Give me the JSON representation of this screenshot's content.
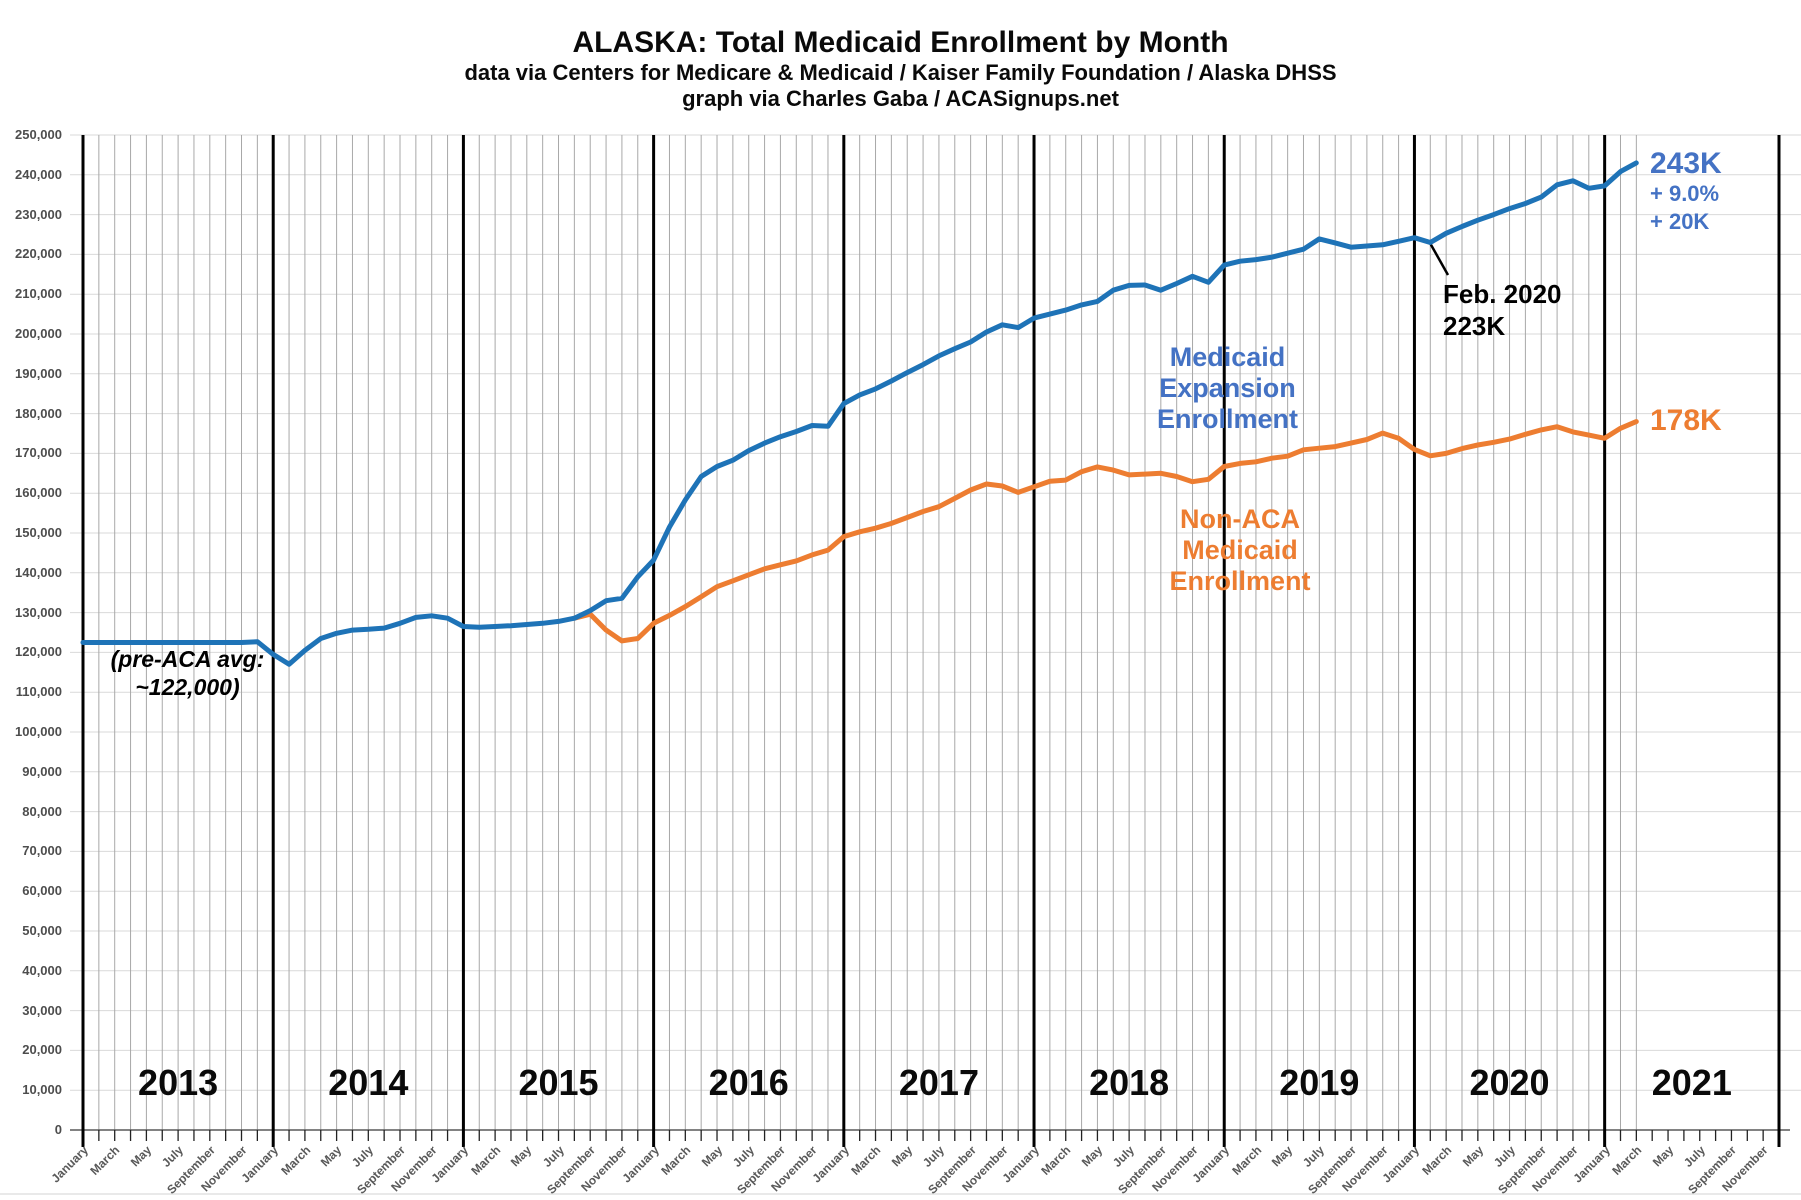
{
  "header": {
    "title": "ALASKA: Total Medicaid Enrollment by Month",
    "subtitle1": "data via Centers for Medicare & Medicaid / Kaiser Family Foundation / Alaska DHSS",
    "subtitle2": "graph via Charles Gaba / ACASignups.net"
  },
  "legend": {
    "expansion_line1": "Medicaid Expansion",
    "expansion_line2": "Enrollment",
    "nonaca_line1": "Non-ACA",
    "nonaca_line2": "Medicaid Enrollment"
  },
  "annotations": {
    "pre_aca_line1": "(pre-ACA avg:",
    "pre_aca_line2": "~122,000)",
    "feb2020_line1": "Feb. 2020",
    "feb2020_line2": "223K",
    "end_total_label": "243K",
    "end_total_pct": "+ 9.0%",
    "end_total_abs": "+ 20K",
    "end_nonaca_label": "178K"
  },
  "colors": {
    "total_line": "#1E73B7",
    "nonaca_line": "#ED7D31",
    "blue_text": "#4472C4",
    "orange_text": "#ED7D31",
    "gridline": "#D9D9D9",
    "month_gridline": "#A8A8A8",
    "year_line": "#000000",
    "axis_text": "#595959"
  },
  "chart_data": {
    "type": "line",
    "title": "ALASKA: Total Medicaid Enrollment by Month",
    "x_start": "2013-01",
    "x_end": "2021-12",
    "years": [
      2013,
      2014,
      2015,
      2016,
      2017,
      2018,
      2019,
      2020,
      2021
    ],
    "month_labels_shown": [
      "January",
      "March",
      "May",
      "July",
      "September",
      "November"
    ],
    "y_axis": {
      "min": 0,
      "max": 250000,
      "tick_step": 10000
    },
    "units": "enrollees (values in thousands)",
    "notes": "Black vertical rules at each January; data lines end March 2021",
    "series": [
      {
        "name": "Medicaid Expansion Enrollment",
        "color": "#1E73B7",
        "values_thousands": [
          122.5,
          122.5,
          122.5,
          122.5,
          122.5,
          122.5,
          122.5,
          122.5,
          122.5,
          122.5,
          122.5,
          122.7,
          119.5,
          117.0,
          120.5,
          123.5,
          124.8,
          125.6,
          125.8,
          126.1,
          127.3,
          128.8,
          129.2,
          128.6,
          126.5,
          126.3,
          126.5,
          126.7,
          127.0,
          127.3,
          127.8,
          128.6,
          130.5,
          133.0,
          133.6,
          139.0,
          143.2,
          151.5,
          158.3,
          164.2,
          166.7,
          168.3,
          170.7,
          172.6,
          174.2,
          175.5,
          177.0,
          176.8,
          182.5,
          184.7,
          186.2,
          188.2,
          190.3,
          192.3,
          194.5,
          196.3,
          198.0,
          200.5,
          202.3,
          201.6,
          204.0,
          205.0,
          206.0,
          207.3,
          208.2,
          211.0,
          212.2,
          212.3,
          211.0,
          212.7,
          214.5,
          213.0,
          217.3,
          218.3,
          218.7,
          219.3,
          220.3,
          221.3,
          223.9,
          222.9,
          221.8,
          222.1,
          222.4,
          223.3,
          224.2,
          223.0,
          225.3,
          227.0,
          228.6,
          230.0,
          231.5,
          232.8,
          234.4,
          237.5,
          238.5,
          236.6,
          237.2,
          240.8,
          243.0,
          null,
          null,
          null,
          null,
          null,
          null,
          null,
          null,
          null
        ]
      },
      {
        "name": "Non-ACA Medicaid Enrollment",
        "color": "#ED7D31",
        "values_thousands": [
          null,
          null,
          null,
          null,
          null,
          null,
          null,
          null,
          null,
          null,
          null,
          null,
          null,
          null,
          null,
          null,
          null,
          null,
          null,
          null,
          null,
          null,
          null,
          null,
          null,
          null,
          null,
          null,
          null,
          null,
          null,
          128.6,
          129.6,
          125.6,
          122.9,
          123.5,
          127.3,
          129.3,
          131.5,
          134.0,
          136.5,
          138.0,
          139.5,
          141.0,
          142.0,
          143.0,
          144.5,
          145.7,
          149.1,
          150.3,
          151.2,
          152.4,
          153.9,
          155.4,
          156.6,
          158.7,
          160.8,
          162.3,
          161.8,
          160.2,
          161.6,
          163.0,
          163.3,
          165.4,
          166.6,
          165.8,
          164.6,
          164.8,
          165.0,
          164.2,
          162.9,
          163.5,
          166.7,
          167.5,
          167.9,
          168.8,
          169.3,
          170.9,
          171.3,
          171.7,
          172.6,
          173.5,
          175.1,
          173.8,
          171.0,
          169.4,
          170.0,
          171.2,
          172.1,
          172.8,
          173.6,
          174.8,
          175.9,
          176.7,
          175.4,
          174.6,
          173.8,
          176.3,
          178.0,
          null,
          null,
          null,
          null,
          null,
          null,
          null,
          null,
          null
        ]
      }
    ]
  }
}
